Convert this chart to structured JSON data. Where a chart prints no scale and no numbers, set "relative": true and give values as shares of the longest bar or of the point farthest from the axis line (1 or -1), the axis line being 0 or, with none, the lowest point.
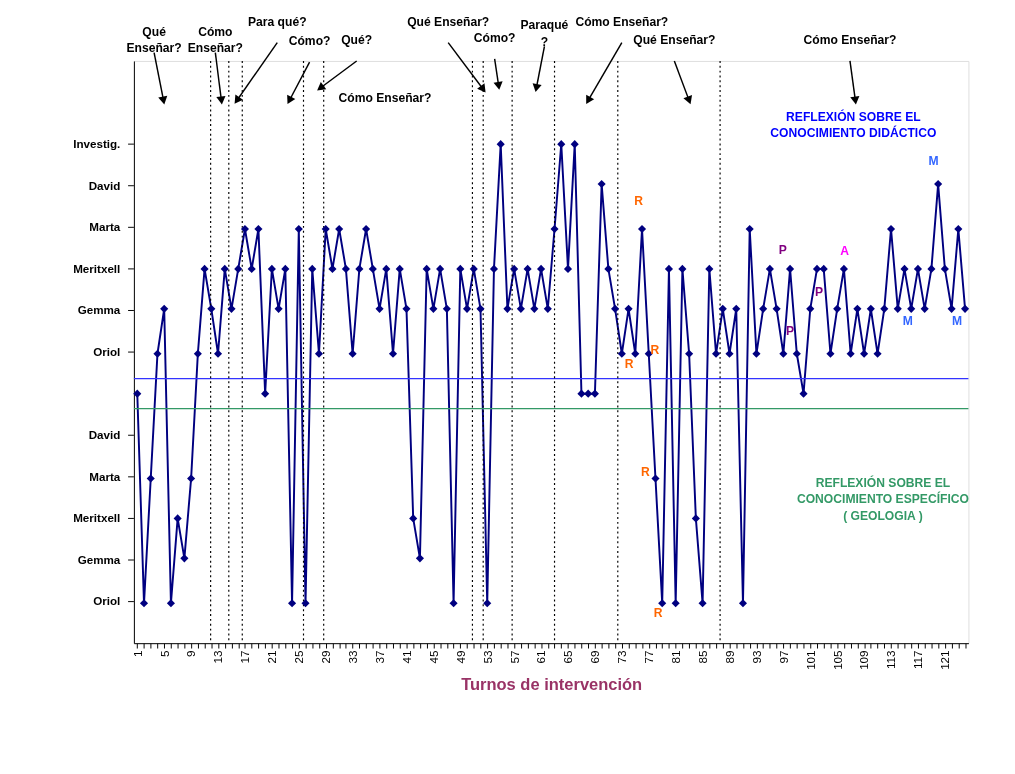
{
  "chart_data": {
    "type": "line",
    "xlabel": "Turnos de intervención",
    "color": "#000080",
    "marker": "diamond",
    "line_style": "solid",
    "grid": false,
    "relative": true,
    "x": [
      1,
      2,
      3,
      4,
      5,
      6,
      7,
      8,
      9,
      10,
      11,
      12,
      13,
      14,
      15,
      16,
      17,
      18,
      19,
      20,
      21,
      22,
      23,
      24,
      25,
      26,
      27,
      28,
      29,
      30,
      31,
      32,
      33,
      34,
      35,
      36,
      37,
      38,
      39,
      40,
      41,
      42,
      43,
      44,
      45,
      46,
      47,
      48,
      49,
      50,
      51,
      52,
      53,
      54,
      55,
      56,
      57,
      58,
      59,
      60,
      61,
      62,
      63,
      64,
      65,
      66,
      67,
      68,
      69,
      70,
      71,
      72,
      73,
      74,
      75,
      76,
      77,
      78,
      79,
      80,
      81,
      82,
      83,
      84,
      85,
      86,
      87,
      88,
      89,
      90,
      91,
      92,
      93,
      94,
      95,
      96,
      97,
      98,
      99,
      100,
      101,
      102,
      103,
      104,
      105,
      106,
      107,
      108,
      109,
      110,
      111,
      112,
      113,
      114,
      115,
      116,
      117,
      118,
      119,
      120,
      121,
      122,
      123,
      124
    ],
    "values": [
      0.5,
      0.08,
      0.33,
      0.58,
      0.67,
      0.08,
      0.25,
      0.17,
      0.33,
      0.58,
      0.75,
      0.67,
      0.58,
      0.75,
      0.67,
      0.75,
      0.83,
      0.75,
      0.83,
      0.5,
      0.75,
      0.67,
      0.75,
      0.08,
      0.83,
      0.08,
      0.75,
      0.58,
      0.83,
      0.75,
      0.83,
      0.75,
      0.58,
      0.75,
      0.83,
      0.75,
      0.67,
      0.75,
      0.58,
      0.75,
      0.67,
      0.25,
      0.17,
      0.75,
      0.67,
      0.75,
      0.67,
      0.08,
      0.75,
      0.67,
      0.75,
      0.67,
      0.08,
      0.75,
      1,
      0.67,
      0.75,
      0.67,
      0.75,
      0.67,
      0.75,
      0.67,
      0.83,
      1,
      0.75,
      1,
      0.5,
      0.5,
      0.5,
      0.92,
      0.75,
      0.67,
      0.58,
      0.67,
      0.58,
      0.83,
      0.58,
      0.33,
      0.08,
      0.75,
      0.08,
      0.75,
      0.58,
      0.25,
      0.08,
      0.75,
      0.58,
      0.67,
      0.58,
      0.67,
      0.08,
      0.83,
      0.58,
      0.67,
      0.75,
      0.67,
      0.58,
      0.75,
      0.58,
      0.5,
      0.67,
      0.75,
      0.75,
      0.58,
      0.67,
      0.75,
      0.58,
      0.67,
      0.58,
      0.67,
      0.58,
      0.67,
      0.83,
      0.67,
      0.75,
      0.67,
      0.75,
      0.67,
      0.75,
      0.92,
      0.75,
      0.67,
      0.83,
      0.67
    ],
    "xlim": [
      0.5,
      124.5
    ],
    "xticks": [
      1,
      {
        "value": 2,
        "label": null
      },
      {
        "value": 3,
        "label": null
      },
      {
        "value": 4,
        "label": null
      },
      5,
      {
        "value": 6,
        "label": null
      },
      {
        "value": 7,
        "label": null
      },
      {
        "value": 8,
        "label": null
      },
      9,
      {
        "value": 10,
        "label": null
      },
      {
        "value": 11,
        "label": null
      },
      {
        "value": 12,
        "label": null
      },
      13,
      {
        "value": 14,
        "label": null
      },
      {
        "value": 15,
        "label": null
      },
      {
        "value": 16,
        "label": null
      },
      17,
      {
        "value": 18,
        "label": null
      },
      {
        "value": 19,
        "label": null
      },
      {
        "value": 20,
        "label": null
      },
      21,
      {
        "value": 22,
        "label": null
      },
      {
        "value": 23,
        "label": null
      },
      {
        "value": 24,
        "label": null
      },
      25,
      {
        "value": 26,
        "label": null
      },
      {
        "value": 27,
        "label": null
      },
      {
        "value": 28,
        "label": null
      },
      29,
      {
        "value": 30,
        "label": null
      },
      {
        "value": 31,
        "label": null
      },
      {
        "value": 32,
        "label": null
      },
      33,
      {
        "value": 34,
        "label": null
      },
      {
        "value": 35,
        "label": null
      },
      {
        "value": 36,
        "label": null
      },
      37,
      {
        "value": 38,
        "label": null
      },
      {
        "value": 39,
        "label": null
      },
      {
        "value": 40,
        "label": null
      },
      41,
      {
        "value": 42,
        "label": null
      },
      {
        "value": 43,
        "label": null
      },
      {
        "value": 44,
        "label": null
      },
      45,
      {
        "value": 46,
        "label": null
      },
      {
        "value": 47,
        "label": null
      },
      {
        "value": 48,
        "label": null
      },
      49,
      {
        "value": 50,
        "label": null
      },
      {
        "value": 51,
        "label": null
      },
      {
        "value": 52,
        "label": null
      },
      53,
      {
        "value": 54,
        "label": null
      },
      {
        "value": 55,
        "label": null
      },
      {
        "value": 56,
        "label": null
      },
      57,
      {
        "value": 58,
        "label": null
      },
      {
        "value": 59,
        "label": null
      },
      {
        "value": 60,
        "label": null
      },
      61,
      {
        "value": 62,
        "label": null
      },
      {
        "value": 63,
        "label": null
      },
      {
        "value": 64,
        "label": null
      },
      65,
      {
        "value": 66,
        "label": null
      },
      {
        "value": 67,
        "label": null
      },
      {
        "value": 68,
        "label": null
      },
      69,
      {
        "value": 70,
        "label": null
      },
      {
        "value": 71,
        "label": null
      },
      {
        "value": 72,
        "label": null
      },
      73,
      {
        "value": 74,
        "label": null
      },
      {
        "value": 75,
        "label": null
      },
      {
        "value": 76,
        "label": null
      },
      77,
      {
        "value": 78,
        "label": null
      },
      {
        "value": 79,
        "label": null
      },
      {
        "value": 80,
        "label": null
      },
      81,
      {
        "value": 82,
        "label": null
      },
      {
        "value": 83,
        "label": null
      },
      {
        "value": 84,
        "label": null
      },
      85,
      {
        "value": 86,
        "label": null
      },
      {
        "value": 87,
        "label": null
      },
      {
        "value": 88,
        "label": null
      },
      89,
      {
        "value": 90,
        "label": null
      },
      {
        "value": 91,
        "label": null
      },
      {
        "value": 92,
        "label": null
      },
      93,
      {
        "value": 94,
        "label": null
      },
      {
        "value": 95,
        "label": null
      },
      {
        "value": 96,
        "label": null
      },
      97,
      {
        "value": 98,
        "label": null
      },
      {
        "value": 99,
        "label": null
      },
      {
        "value": 100,
        "label": null
      },
      101,
      {
        "value": 102,
        "label": null
      },
      {
        "value": 103,
        "label": null
      },
      {
        "value": 104,
        "label": null
      },
      105,
      {
        "value": 106,
        "label": null
      },
      {
        "value": 107,
        "label": null
      },
      {
        "value": 108,
        "label": null
      },
      109,
      {
        "value": 110,
        "label": null
      },
      {
        "value": 111,
        "label": null
      },
      {
        "value": 112,
        "label": null
      },
      113,
      {
        "value": 114,
        "label": null
      },
      {
        "value": 115,
        "label": null
      },
      {
        "value": 116,
        "label": null
      },
      117,
      {
        "value": 118,
        "label": null
      },
      {
        "value": 119,
        "label": null
      },
      {
        "value": 120,
        "label": null
      },
      121,
      {
        "value": 122,
        "label": null
      },
      {
        "value": 123,
        "label": null
      },
      {
        "value": 124,
        "label": null
      }
    ],
    "ref_lines": [
      {
        "axis": "y",
        "value": 0.53,
        "color": "#3333ff",
        "line_style": "solid"
      },
      {
        "axis": "y",
        "value": 0.47,
        "color": "#339966",
        "line_style": "solid"
      },
      {
        "axis": "x",
        "value": 11.9,
        "color": "#000000",
        "line_style": "dotted"
      },
      {
        "axis": "x",
        "value": 14.6,
        "color": "#000000",
        "line_style": "dotted"
      },
      {
        "axis": "x",
        "value": 16.6,
        "color": "#000000",
        "line_style": "dotted"
      },
      {
        "axis": "x",
        "value": 25.7,
        "color": "#000000",
        "line_style": "dotted"
      },
      {
        "axis": "x",
        "value": 28.7,
        "color": "#000000",
        "line_style": "dotted"
      },
      {
        "axis": "x",
        "value": 50.8,
        "color": "#000000",
        "line_style": "dotted"
      },
      {
        "axis": "x",
        "value": 52.4,
        "color": "#000000",
        "line_style": "dotted"
      },
      {
        "axis": "x",
        "value": 56.7,
        "color": "#000000",
        "line_style": "dotted"
      },
      {
        "axis": "x",
        "value": 63.0,
        "color": "#000000",
        "line_style": "dotted"
      },
      {
        "axis": "x",
        "value": 72.4,
        "color": "#000000",
        "line_style": "dotted"
      },
      {
        "axis": "x",
        "value": 87.6,
        "color": "#000000",
        "line_style": "dotted"
      }
    ],
    "annotations": [
      "Qué\nEnseñar?",
      "Cómo\nEnseñar?",
      "Para qué?",
      "Cómo?",
      "Qué?",
      "Cómo Enseñar?",
      {
        "text": "Qué Enseñar?",
        "x": 52.4,
        "y": 1.11
      },
      "Cómo?",
      "Paraqué\n?",
      "Cómo Enseñar?",
      "Qué Enseñar?",
      "Cómo Enseñar?",
      "REFLEXIÓN SOBRE EL\nCONOCIMIENTO DIDÁCTICO",
      "REFLEXIÓN SOBRE EL\nCONOCIMIENTO ESPECÍFICO\n( GEOLOGIA )",
      "R",
      "R",
      "R",
      "R",
      "R",
      "P",
      "P",
      "P",
      "A",
      "M",
      "M",
      "M",
      "Investig.",
      "David",
      "Marta",
      "Meritxell",
      "Gemma",
      "Oriol",
      "David",
      "Marta",
      "Meritxell",
      "Gemma",
      "Oriol"
    ]
  }
}
